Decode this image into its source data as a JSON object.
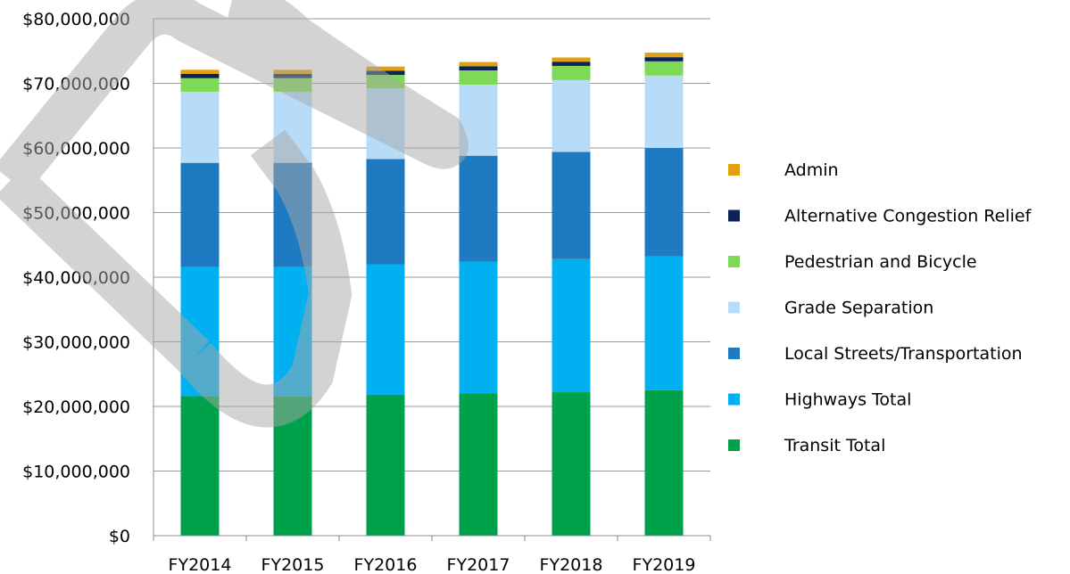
{
  "chart_data": {
    "type": "bar",
    "stacked": true,
    "categories": [
      "FY2014",
      "FY2015",
      "FY2016",
      "FY2017",
      "FY2018",
      "FY2019"
    ],
    "ylim": [
      0,
      80000000
    ],
    "yticks": [
      0,
      10000000,
      20000000,
      30000000,
      40000000,
      50000000,
      60000000,
      70000000,
      80000000
    ],
    "ytick_labels": [
      "$0",
      "$10,000,000",
      "$20,000,000",
      "$30,000,000",
      "$40,000,000",
      "$50,000,000",
      "$60,000,000",
      "$70,000,000",
      "$80,000,000"
    ],
    "grid": true,
    "legend_position": "right",
    "watermark": "DRAFT",
    "series": [
      {
        "name": "Transit Total",
        "color": "#00a14b",
        "values": [
          21600000,
          21600000,
          21800000,
          22000000,
          22200000,
          22500000
        ]
      },
      {
        "name": "Highways Total",
        "color": "#00b0f0",
        "values": [
          20000000,
          20000000,
          20200000,
          20400000,
          20600000,
          20700000
        ]
      },
      {
        "name": "Local Streets/Transportation",
        "color": "#1f7bc1",
        "values": [
          16100000,
          16100000,
          16300000,
          16400000,
          16600000,
          16800000
        ]
      },
      {
        "name": "Grade Separation",
        "color": "#b8dcf8",
        "values": [
          11000000,
          11000000,
          10900000,
          11000000,
          11100000,
          11200000
        ]
      },
      {
        "name": "Pedestrian and Bicycle",
        "color": "#7ed957",
        "values": [
          2100000,
          2100000,
          2100000,
          2200000,
          2200000,
          2200000
        ]
      },
      {
        "name": "Alternative Congestion Relief",
        "color": "#0c2356",
        "values": [
          650000,
          650000,
          650000,
          650000,
          650000,
          650000
        ]
      },
      {
        "name": "Admin",
        "color": "#e0a010",
        "values": [
          650000,
          650000,
          650000,
          650000,
          650000,
          700000
        ]
      }
    ]
  }
}
